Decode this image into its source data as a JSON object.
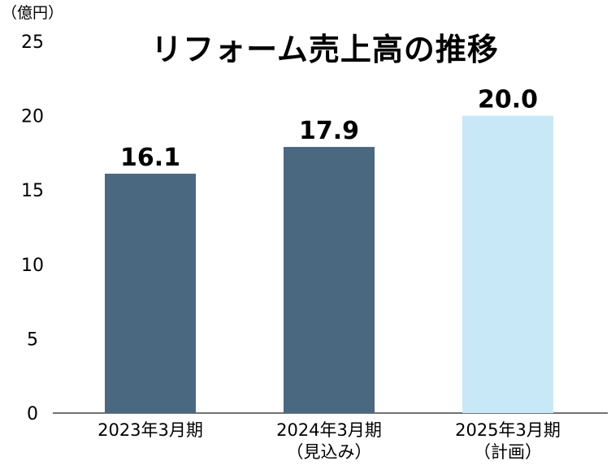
{
  "chart_data": {
    "type": "bar",
    "title": "リフォーム売上高の推移",
    "unit": "（億円）",
    "categories": [
      [
        "2023年3月期"
      ],
      [
        "2024年3月期",
        "（見込み）"
      ],
      [
        "2025年3月期",
        "（計画）"
      ]
    ],
    "values": [
      16.1,
      17.9,
      20.0
    ],
    "value_labels": [
      "16.1",
      "17.9",
      "20.0"
    ],
    "colors": [
      "#4a6880",
      "#4a6880",
      "#c8e8f8"
    ],
    "ylim": [
      0,
      25
    ],
    "yticks": [
      0,
      5,
      10,
      15,
      20,
      25
    ],
    "grid": false,
    "legend": "none"
  }
}
